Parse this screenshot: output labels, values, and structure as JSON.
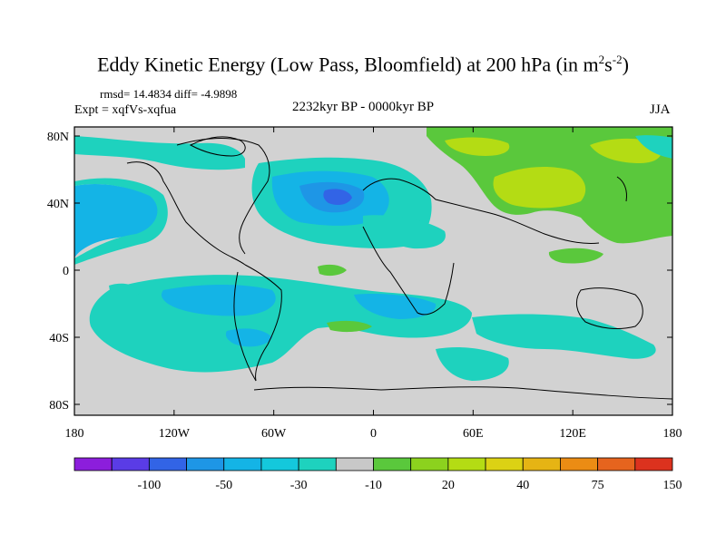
{
  "title": {
    "main": "Eddy Kinetic Energy (Low Pass, Bloomfield) at 200 hPa (in m",
    "unit_sup1": "2",
    "unit_mid": "s",
    "unit_sup2": "-2",
    "unit_end": ")"
  },
  "stats": {
    "rmsd_label": "rmsd=",
    "rmsd": "14.4834",
    "diff_label": "diff=",
    "diff": "-4.9898"
  },
  "expt": "Expt = xqfVs-xqfua",
  "period": "2232kyr BP - 0000kyr BP",
  "season": "JJA",
  "axes": {
    "lat_ticks": [
      "80N",
      "40N",
      "0",
      "40S",
      "80S"
    ],
    "lon_ticks": [
      "180",
      "120W",
      "60W",
      "0",
      "60E",
      "120E",
      "180"
    ]
  },
  "colorbar": {
    "labels": [
      "-100",
      "-50",
      "-30",
      "-10",
      "20",
      "40",
      "75",
      "150"
    ],
    "colors": [
      "#8c1edc",
      "#5a3ce6",
      "#3264e6",
      "#1e96e6",
      "#14b4e6",
      "#14c8dc",
      "#1ed2be",
      "#c8c8c8",
      "#5ac83c",
      "#8cd21e",
      "#b4dc14",
      "#dcd214",
      "#e6b414",
      "#eb8c14",
      "#e6641e",
      "#dc321e"
    ]
  },
  "colors": {
    "land_bg": "#d2d2d2",
    "cyan": "#1ed2be",
    "light_blue": "#14b4e6",
    "blue": "#1e96e6",
    "deep_blue": "#3264e6",
    "green": "#5ac83c",
    "yellow_green": "#b4dc14"
  }
}
